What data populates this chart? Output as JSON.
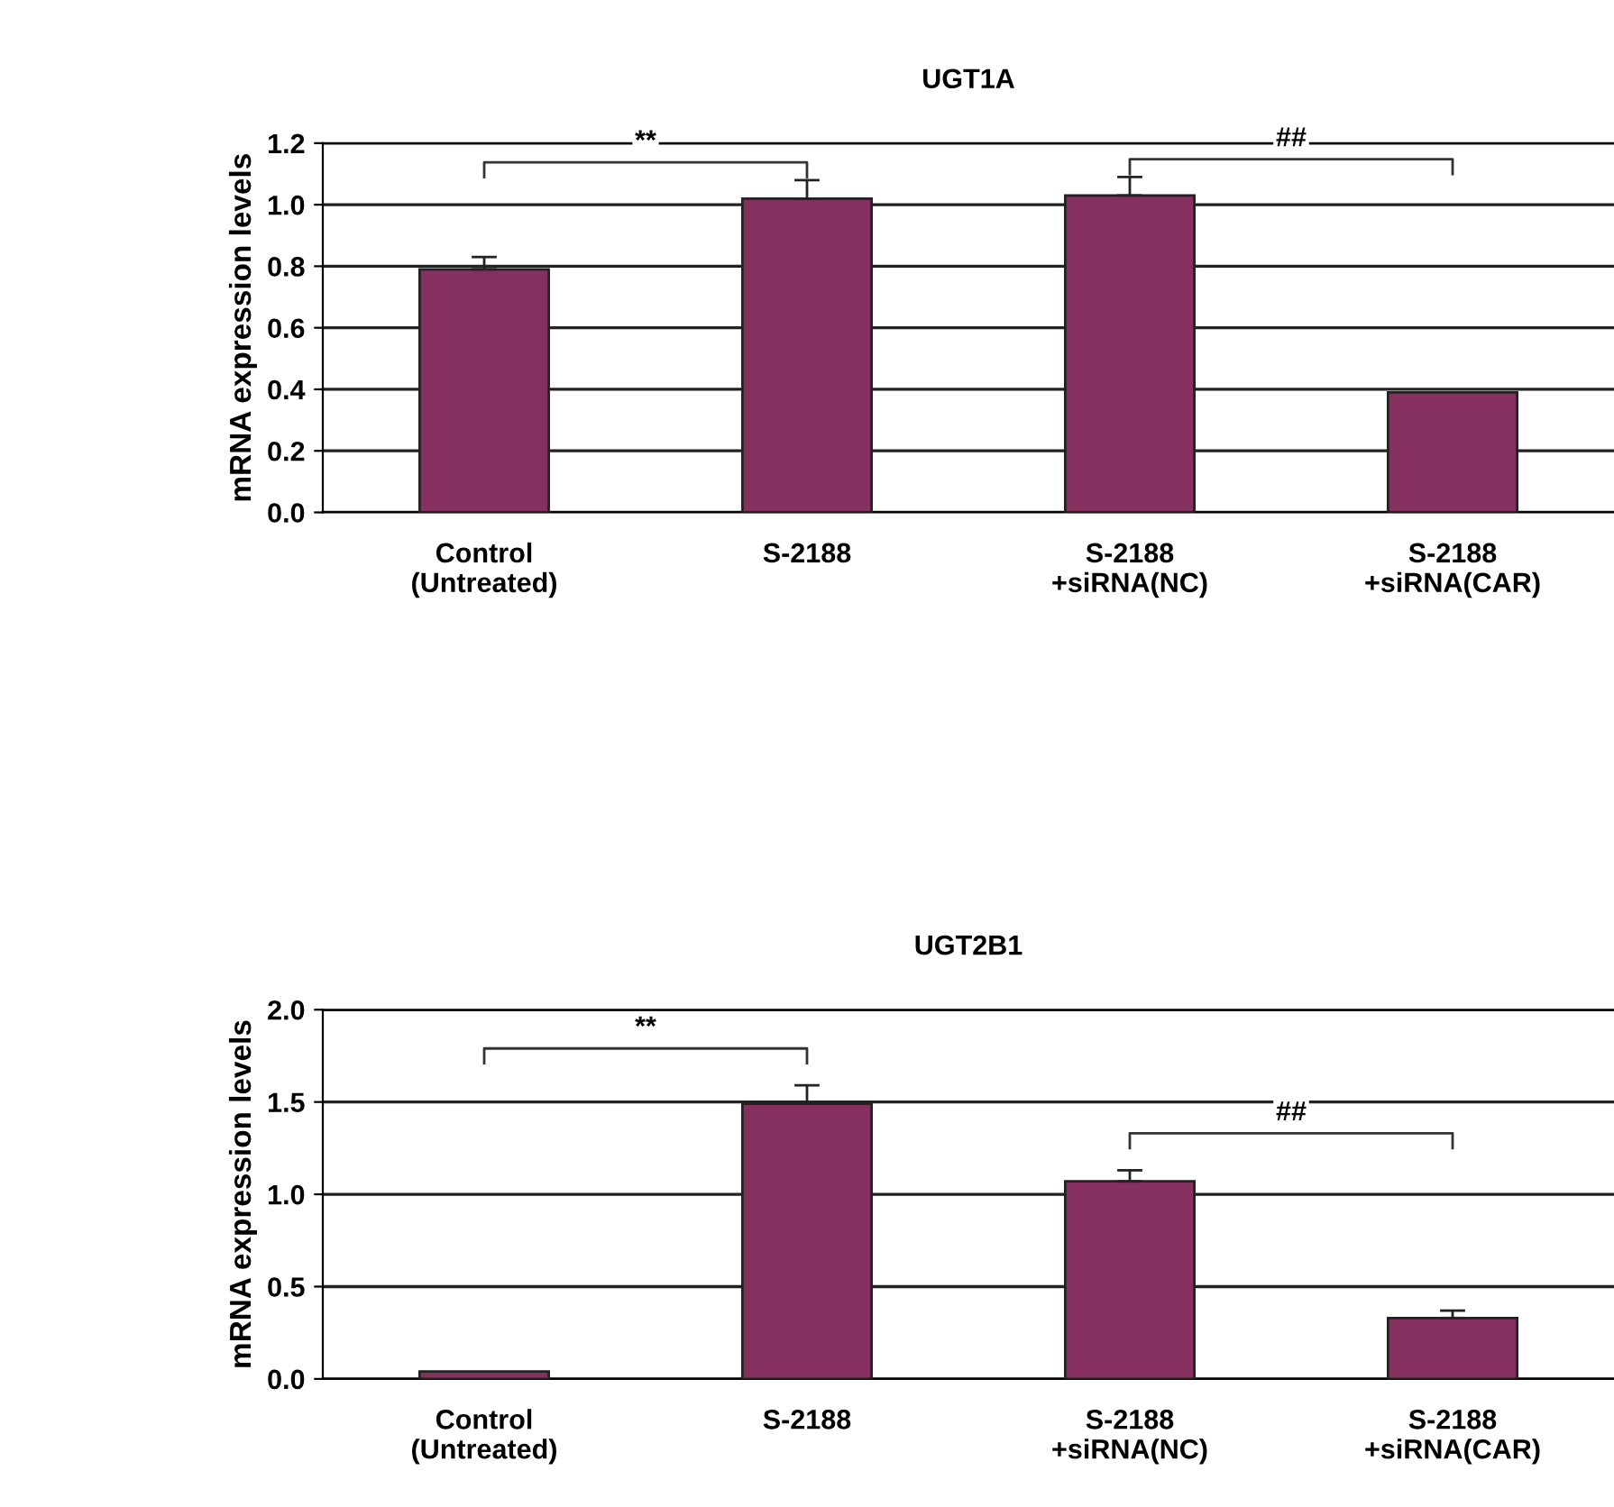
{
  "chart_data": [
    {
      "type": "bar",
      "title": "UGT1A",
      "ylabel": "mRNA expression levels",
      "categories": [
        "Control\n(Untreated)",
        "S-2188",
        "S-2188\n+siRNA(NC)",
        "S-2188\n+siRNA(CAR)"
      ],
      "values": [
        0.79,
        1.02,
        1.03,
        0.39
      ],
      "errors": [
        0.04,
        0.06,
        0.06,
        null
      ],
      "color": "#86305f",
      "ylim": [
        0,
        1.2
      ],
      "yticks": [
        {
          "value": 0,
          "label": "0.0"
        },
        {
          "value": 0.2,
          "label": "0.2"
        },
        {
          "value": 0.4,
          "label": "0.4"
        },
        {
          "value": 0.6,
          "label": "0.6"
        },
        {
          "value": 0.8,
          "label": "0.8"
        },
        {
          "value": 1.0,
          "label": "1.0"
        },
        {
          "value": 1.2,
          "label": "1.2"
        }
      ],
      "grid": "y",
      "annotations": [
        "**",
        "##"
      ]
    },
    {
      "type": "bar",
      "title": "UGT2B1",
      "ylabel": "mRNA expression levels",
      "categories": [
        "Control\n(Untreated)",
        "S-2188",
        "S-2188\n+siRNA(NC)",
        "S-2188\n+siRNA(CAR)"
      ],
      "values": [
        0.04,
        1.49,
        1.07,
        0.33
      ],
      "errors": [
        null,
        0.1,
        0.06,
        0.04
      ],
      "color": "#86305f",
      "ylim": [
        0,
        2.0
      ],
      "yticks": [
        {
          "value": 0,
          "label": "0.0"
        },
        {
          "value": 0.5,
          "label": "0.5"
        },
        {
          "value": 1.0,
          "label": "1.0"
        },
        {
          "value": 1.5,
          "label": "1.5"
        },
        {
          "value": 2.0,
          "label": "2.0"
        }
      ],
      "grid": "y",
      "annotations": [
        "**",
        "##"
      ]
    }
  ]
}
